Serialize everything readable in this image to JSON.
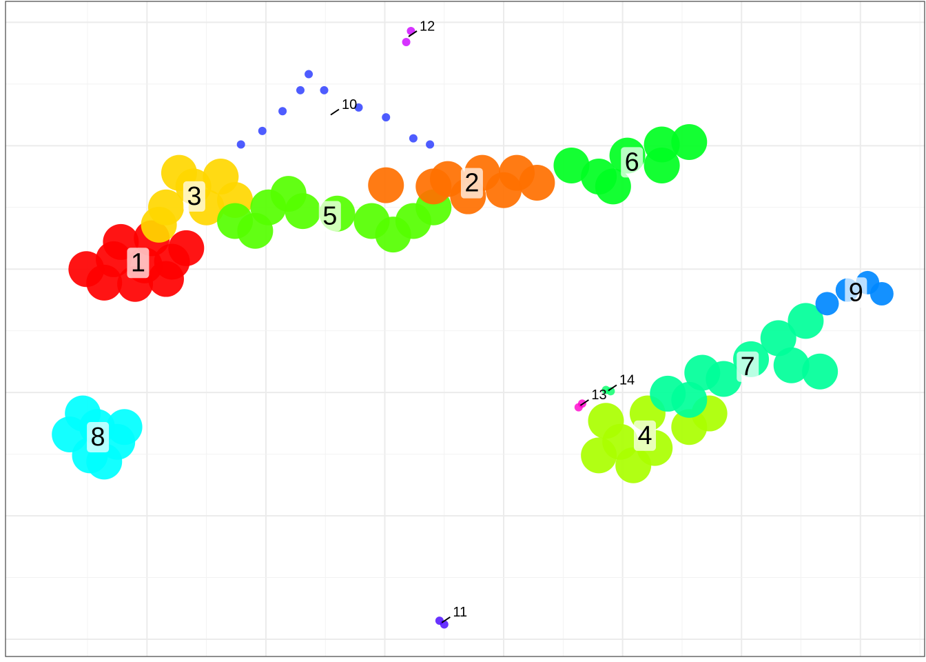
{
  "chart_data": {
    "type": "scatter",
    "xlim": [
      -1.19,
      6.54
    ],
    "ylim": [
      -3.14,
      2.17
    ],
    "xticks": [
      0,
      1,
      2,
      3,
      4,
      5,
      6
    ],
    "yticks": [
      -3,
      -2,
      -1,
      0,
      1,
      2
    ],
    "grid": true,
    "series": [
      {
        "name": "1",
        "color": "#ff0000",
        "x": [
          -0.51,
          -0.28,
          -0.02,
          0.21,
          -0.36,
          -0.1,
          0.16,
          -0.22,
          0.04,
          0.33
        ],
        "y": [
          0.0,
          0.08,
          0.03,
          0.06,
          -0.11,
          -0.12,
          -0.08,
          0.22,
          0.25,
          0.17
        ]
      },
      {
        "name": "3",
        "color": "#ffd700",
        "x": [
          0.16,
          0.39,
          0.62,
          0.5,
          0.1,
          0.74,
          0.27
        ],
        "y": [
          0.5,
          0.67,
          0.75,
          0.5,
          0.36,
          0.56,
          0.78
        ]
      },
      {
        "name": "5",
        "color": "#55ff00",
        "x": [
          0.74,
          1.02,
          1.31,
          1.6,
          1.89,
          2.07,
          2.24,
          2.41,
          1.19,
          0.91
        ],
        "y": [
          0.39,
          0.5,
          0.47,
          0.45,
          0.39,
          0.28,
          0.39,
          0.5,
          0.61,
          0.31
        ]
      },
      {
        "name": "2",
        "color": "#ff7000",
        "x": [
          2.53,
          2.82,
          3.11,
          2.7,
          3.0,
          3.28,
          2.41,
          2.01
        ],
        "y": [
          0.73,
          0.78,
          0.78,
          0.59,
          0.64,
          0.7,
          0.67,
          0.68
        ]
      },
      {
        "name": "6",
        "color": "#00ff22",
        "x": [
          4.33,
          4.56,
          4.04,
          3.8,
          3.57,
          4.33,
          3.92
        ],
        "y": [
          1.01,
          1.03,
          0.92,
          0.75,
          0.84,
          0.84,
          0.67
        ]
      },
      {
        "name": "4",
        "color": "#aaff00",
        "x": [
          3.98,
          4.27,
          4.56,
          3.86,
          4.21,
          4.73,
          3.8,
          4.09
        ],
        "y": [
          -1.4,
          -1.45,
          -1.28,
          -1.23,
          -1.17,
          -1.17,
          -1.51,
          -1.59
        ]
      },
      {
        "name": "7",
        "color": "#00ff99",
        "x": [
          4.56,
          4.85,
          5.08,
          5.31,
          5.54,
          4.67,
          4.38,
          5.42,
          5.66
        ],
        "y": [
          -1.06,
          -0.89,
          -0.73,
          -0.56,
          -0.42,
          -0.84,
          -1.01,
          -0.78,
          -0.83
        ]
      },
      {
        "name": "9",
        "color": "#0088ff",
        "x": [
          5.72,
          5.89,
          6.06,
          6.18
        ],
        "y": [
          -0.28,
          -0.17,
          -0.11,
          -0.2
        ]
      },
      {
        "name": "8",
        "color": "#00ffff",
        "x": [
          -0.65,
          -0.42,
          -0.25,
          -0.48,
          -0.36,
          -0.54,
          -0.19
        ],
        "y": [
          -1.34,
          -1.28,
          -1.4,
          -1.51,
          -1.56,
          -1.17,
          -1.28
        ]
      },
      {
        "name": "10",
        "color": "#2233ff",
        "x": [
          0.79,
          0.97,
          1.14,
          1.29,
          1.36,
          1.49,
          1.78,
          2.01,
          2.24,
          2.38
        ],
        "y": [
          1.01,
          1.12,
          1.28,
          1.45,
          1.58,
          1.45,
          1.31,
          1.23,
          1.06,
          1.01
        ]
      },
      {
        "name": "11",
        "color": "#4400ff",
        "x": [
          2.46,
          2.5
        ],
        "y": [
          -2.85,
          -2.88
        ]
      },
      {
        "name": "12",
        "color": "#cc00ff",
        "x": [
          2.22,
          2.18
        ],
        "y": [
          1.93,
          1.84
        ]
      },
      {
        "name": "13",
        "color": "#ff00cc",
        "x": [
          3.66,
          3.63
        ],
        "y": [
          -1.09,
          -1.12
        ]
      },
      {
        "name": "14",
        "color": "#00ff66",
        "x": [
          3.86,
          3.9
        ],
        "y": [
          -0.98,
          -0.99
        ]
      }
    ]
  }
}
